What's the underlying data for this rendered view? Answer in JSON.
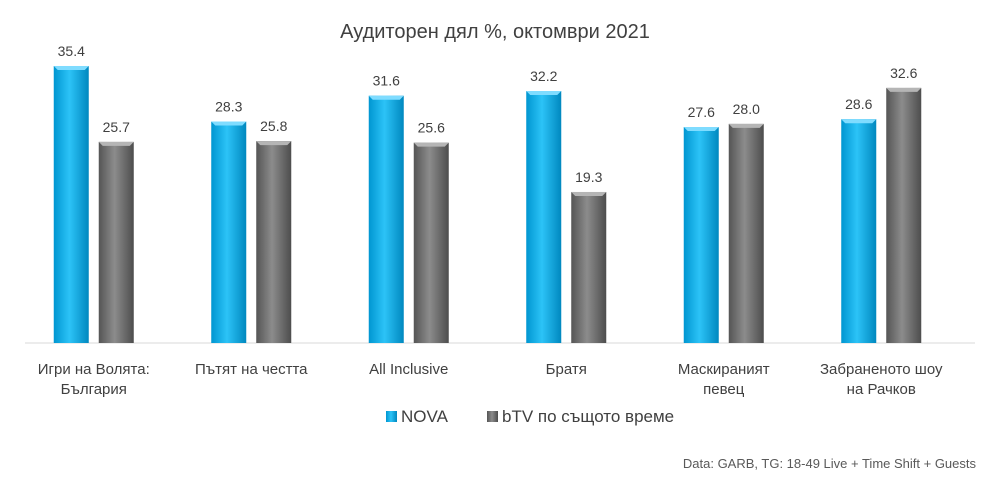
{
  "chart_data": {
    "type": "bar",
    "title": "Аудиторен дял %, октомври 2021",
    "categories": [
      [
        "Игри на Волята:",
        "България"
      ],
      [
        "Пътят на честта"
      ],
      [
        "All Inclusive"
      ],
      [
        "Братя"
      ],
      [
        "Маскираният",
        "певец"
      ],
      [
        "Забраненото шоу",
        "на Рачков"
      ]
    ],
    "series": [
      {
        "name": "NOVA",
        "color": "#00b0f0",
        "values": [
          35.4,
          28.3,
          31.6,
          32.2,
          27.6,
          28.6
        ],
        "labels": [
          "35.4",
          "28.3",
          "31.6",
          "32.2",
          "27.6",
          "28.6"
        ]
      },
      {
        "name": "bTV по същото време",
        "color": "#7f7f7f",
        "values": [
          25.7,
          25.8,
          25.6,
          19.3,
          28.0,
          32.6
        ],
        "labels": [
          "25.7",
          "25.8",
          "25.6",
          "19.3",
          "28.0",
          "32.6"
        ]
      }
    ],
    "xlabel": "",
    "ylabel": "",
    "ylim": [
      0,
      40
    ],
    "grid": false,
    "legend_position": "bottom",
    "source_note": "Data: GARB, TG: 18-49 Live + Time Shift + Guests"
  }
}
